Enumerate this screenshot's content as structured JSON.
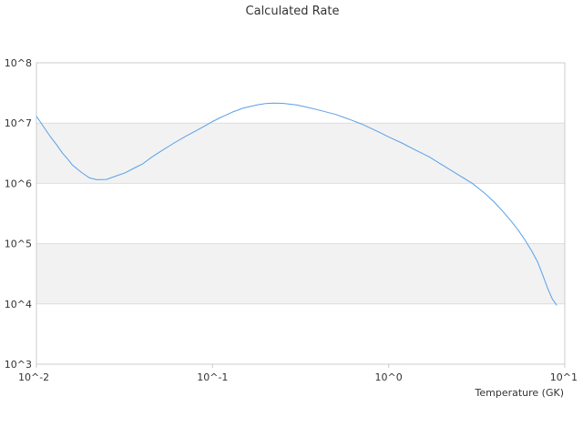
{
  "chart_data": {
    "type": "line",
    "title": "Calculated Rate",
    "xlabel": "Temperature (GK)",
    "ylabel": "",
    "x_scale": "log",
    "y_scale": "log",
    "xlim": [
      0.01,
      10
    ],
    "ylim": [
      1000,
      100000000
    ],
    "x_ticks": [
      0.01,
      0.1,
      1,
      10
    ],
    "x_tick_labels": [
      "10^-2",
      "10^-1",
      "10^0",
      "10^1"
    ],
    "y_ticks": [
      1000,
      10000,
      100000,
      1000000,
      10000000,
      100000000
    ],
    "y_tick_labels": [
      "10^3",
      "10^4",
      "10^5",
      "10^6",
      "10^7",
      "10^8"
    ],
    "grid": true,
    "alternating_bands": true,
    "legend": "none",
    "colors": {
      "line": "#5aa0e8",
      "band": "#f2f2f2",
      "grid": "#dddddd",
      "axis": "#cccccc"
    },
    "series": [
      {
        "values_x": [
          0.01,
          0.011,
          0.012,
          0.013,
          0.014,
          0.015,
          0.016,
          0.018,
          0.02,
          0.022,
          0.025,
          0.028,
          0.032,
          0.036,
          0.04,
          0.045,
          0.05,
          0.06,
          0.07,
          0.08,
          0.09,
          0.1,
          0.11,
          0.13,
          0.15,
          0.18,
          0.2,
          0.22,
          0.25,
          0.3,
          0.35,
          0.4,
          0.5,
          0.6,
          0.7,
          0.8,
          0.9,
          1.0,
          1.2,
          1.4,
          1.7,
          2.0,
          2.5,
          3.0,
          3.5,
          4.0,
          4.5,
          5.0,
          5.5,
          6.0,
          6.5,
          7.0,
          7.5,
          8.0,
          8.5,
          9.0
        ],
        "values_y": [
          13000000,
          8600000,
          5950000,
          4400000,
          3220000,
          2570000,
          2010000,
          1520000,
          1230000,
          1150000,
          1160000,
          1310000,
          1500000,
          1800000,
          2100000,
          2700000,
          3300000,
          4600000,
          6000000,
          7400000,
          8900000,
          10600000,
          12200000,
          15300000,
          17800000,
          20100000,
          21100000,
          21500000,
          21300000,
          20000000,
          18100000,
          16500000,
          13900000,
          11500000,
          9700000,
          8100000,
          6900000,
          5900000,
          4600000,
          3650000,
          2750000,
          2050000,
          1370000,
          990000,
          690000,
          480000,
          330000,
          230000,
          160000,
          110000,
          75000,
          50000,
          30000,
          18000,
          12000,
          9500
        ]
      }
    ]
  }
}
